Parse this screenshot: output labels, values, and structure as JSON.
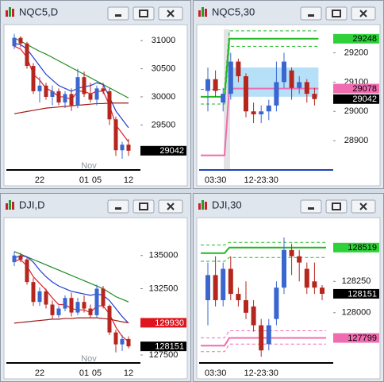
{
  "windows": [
    {
      "title": "NQC5,D",
      "chart": {
        "type": "candlestick",
        "ylim": [
          28700,
          31200
        ],
        "yticks": [
          29500,
          30000,
          30500,
          31000
        ],
        "categories": [
          null,
          null,
          null,
          null,
          "22",
          null,
          null,
          null,
          null,
          null,
          null,
          "01",
          null,
          "05",
          null,
          null,
          null,
          null,
          "12"
        ],
        "month_label": "Nov",
        "up_color": "#3a66d0",
        "down_color": "#b5261e",
        "candles": [
          {
            "o": 30900,
            "h": 31120,
            "l": 30850,
            "c": 31050
          },
          {
            "o": 31050,
            "h": 31080,
            "l": 30880,
            "c": 30950
          },
          {
            "o": 30950,
            "h": 30980,
            "l": 30500,
            "c": 30550
          },
          {
            "o": 30550,
            "h": 30600,
            "l": 30050,
            "c": 30100
          },
          {
            "o": 30100,
            "h": 30350,
            "l": 29900,
            "c": 30200
          },
          {
            "o": 30200,
            "h": 30250,
            "l": 29950,
            "c": 30000
          },
          {
            "o": 30000,
            "h": 30200,
            "l": 29850,
            "c": 30100
          },
          {
            "o": 30100,
            "h": 30150,
            "l": 29850,
            "c": 29900
          },
          {
            "o": 29900,
            "h": 30100,
            "l": 29800,
            "c": 30050
          },
          {
            "o": 30050,
            "h": 30150,
            "l": 29750,
            "c": 29850
          },
          {
            "o": 29850,
            "h": 30500,
            "l": 29800,
            "c": 30350
          },
          {
            "o": 30350,
            "h": 30450,
            "l": 30000,
            "c": 30050
          },
          {
            "o": 30050,
            "h": 30250,
            "l": 29900,
            "c": 29950
          },
          {
            "o": 29950,
            "h": 30200,
            "l": 29850,
            "c": 30150
          },
          {
            "o": 30150,
            "h": 30250,
            "l": 30050,
            "c": 30100
          },
          {
            "o": 30100,
            "h": 30150,
            "l": 29500,
            "c": 29600
          },
          {
            "o": 29600,
            "h": 29650,
            "l": 28950,
            "c": 29050
          },
          {
            "o": 29050,
            "h": 29200,
            "l": 28900,
            "c": 29150
          },
          {
            "o": 29150,
            "h": 29250,
            "l": 28950,
            "c": 29042
          }
        ],
        "lines": [
          {
            "color": "#1e8a1e",
            "values": [
              31050,
              30990,
              30930,
              30870,
              30810,
              30760,
              30700,
              30640,
              30580,
              30520,
              30460,
              30400,
              30340,
              30280,
              30220,
              30160,
              30100,
              30040,
              29980
            ]
          },
          {
            "color": "#1f3fd0",
            "values": [
              30950,
              30930,
              30850,
              30700,
              30550,
              30400,
              30300,
              30200,
              30150,
              30100,
              30150,
              30180,
              30200,
              30250,
              30220,
              30000,
              29750,
              29600,
              29450
            ]
          },
          {
            "color": "#e0202a",
            "values": [
              30900,
              30850,
              30700,
              30400,
              30300,
              30150,
              30100,
              30000,
              30000,
              29950,
              30100,
              30100,
              30050,
              30100,
              30100,
              29850,
              29500,
              29350,
              29200
            ]
          },
          {
            "color": "#a01818",
            "values": [
              29700,
              29720,
              29740,
              29760,
              29780,
              29800,
              29810,
              29820,
              29830,
              29840,
              29850,
              29860,
              29870,
              29880,
              29880,
              29890,
              29890,
              29890,
              29890
            ]
          }
        ],
        "price_tags": [
          {
            "value": 29042,
            "color": "#000000",
            "text_color": "#ffffff"
          }
        ]
      }
    },
    {
      "title": "NQC5,30",
      "chart": {
        "type": "candlestick",
        "ylim": [
          28800,
          29280
        ],
        "yticks": [
          28900,
          29000,
          29100,
          29200
        ],
        "categories": [
          null,
          "03:30",
          null,
          null,
          null,
          null,
          null,
          "12-23:30",
          null,
          null,
          null,
          null,
          null,
          null,
          null
        ],
        "up_color": "#3a66d0",
        "down_color": "#b5261e",
        "session_break": 3,
        "zone": {
          "values": [
            29050,
            29150
          ],
          "color": "#a9dbf7"
        },
        "candles": [
          {
            "o": 29070,
            "h": 29150,
            "l": 29000,
            "c": 29110
          },
          {
            "o": 29110,
            "h": 29140,
            "l": 29050,
            "c": 29070
          },
          {
            "o": 29030,
            "h": 29080,
            "l": 29000,
            "c": 29060
          },
          {
            "o": 29060,
            "h": 29200,
            "l": 29040,
            "c": 29170
          },
          {
            "o": 29170,
            "h": 29180,
            "l": 29100,
            "c": 29120
          },
          {
            "o": 29120,
            "h": 29130,
            "l": 28980,
            "c": 29000
          },
          {
            "o": 29000,
            "h": 29030,
            "l": 28960,
            "c": 28990
          },
          {
            "o": 28990,
            "h": 29020,
            "l": 28960,
            "c": 29000
          },
          {
            "o": 29000,
            "h": 29040,
            "l": 28970,
            "c": 29020
          },
          {
            "o": 29020,
            "h": 29170,
            "l": 29000,
            "c": 29100
          },
          {
            "o": 29100,
            "h": 29200,
            "l": 29080,
            "c": 29170
          },
          {
            "o": 29140,
            "h": 29150,
            "l": 29040,
            "c": 29080
          },
          {
            "o": 29080,
            "h": 29120,
            "l": 29060,
            "c": 29100
          },
          {
            "o": 29100,
            "h": 29110,
            "l": 29030,
            "c": 29060
          },
          {
            "o": 29060,
            "h": 29080,
            "l": 29020,
            "c": 29042
          }
        ],
        "levels": [
          {
            "color": "#22b922",
            "dashed": false,
            "values": [
              29050,
              29248
            ]
          },
          {
            "color": "#22b922",
            "dashed": true,
            "values": [
              29075,
              29275
            ]
          },
          {
            "color": "#22b922",
            "dashed": true,
            "values": [
              29025,
              29222
            ]
          },
          {
            "color": "#f06cb0",
            "dashed": false,
            "values": [
              28850,
              29078
            ]
          }
        ],
        "price_tags": [
          {
            "value": 29248,
            "color": "#2ed13a",
            "text_color": "#000000"
          },
          {
            "value": 29078,
            "color": "#f06cb0",
            "text_color": "#000000"
          },
          {
            "value": 29042,
            "color": "#000000",
            "text_color": "#ffffff"
          }
        ]
      }
    },
    {
      "title": "DJI,D",
      "chart": {
        "type": "candlestick",
        "ylim": [
          126900,
          137500
        ],
        "yticks": [
          127500,
          132500,
          135000
        ],
        "categories": [
          null,
          null,
          null,
          null,
          "22",
          null,
          null,
          null,
          null,
          null,
          null,
          "01",
          null,
          "05",
          null,
          null,
          null,
          null,
          "12"
        ],
        "month_label": "Nov",
        "up_color": "#3a66d0",
        "down_color": "#b5261e",
        "candles": [
          {
            "o": 134500,
            "h": 135300,
            "l": 134200,
            "c": 135000
          },
          {
            "o": 135000,
            "h": 135200,
            "l": 134500,
            "c": 134700
          },
          {
            "o": 134700,
            "h": 134900,
            "l": 132800,
            "c": 133000
          },
          {
            "o": 133000,
            "h": 133300,
            "l": 131200,
            "c": 131500
          },
          {
            "o": 131500,
            "h": 132600,
            "l": 131200,
            "c": 132300
          },
          {
            "o": 132300,
            "h": 132500,
            "l": 131000,
            "c": 131300
          },
          {
            "o": 131300,
            "h": 131600,
            "l": 130200,
            "c": 130500
          },
          {
            "o": 130500,
            "h": 131200,
            "l": 130300,
            "c": 131000
          },
          {
            "o": 131000,
            "h": 132000,
            "l": 130800,
            "c": 131800
          },
          {
            "o": 131800,
            "h": 132200,
            "l": 130400,
            "c": 130700
          },
          {
            "o": 130700,
            "h": 131800,
            "l": 130500,
            "c": 131500
          },
          {
            "o": 131500,
            "h": 132000,
            "l": 130700,
            "c": 131000
          },
          {
            "o": 131000,
            "h": 131300,
            "l": 130300,
            "c": 130500
          },
          {
            "o": 130500,
            "h": 132800,
            "l": 130300,
            "c": 132500
          },
          {
            "o": 132500,
            "h": 132700,
            "l": 131000,
            "c": 131200
          },
          {
            "o": 131200,
            "h": 131300,
            "l": 129000,
            "c": 129200
          },
          {
            "o": 129200,
            "h": 129400,
            "l": 127700,
            "c": 128300
          },
          {
            "o": 128300,
            "h": 129000,
            "l": 127800,
            "c": 128700
          },
          {
            "o": 128700,
            "h": 128900,
            "l": 128000,
            "c": 128151
          }
        ],
        "lines": [
          {
            "color": "#1e8a1e",
            "values": [
              135300,
              135100,
              134900,
              134700,
              134500,
              134300,
              134100,
              133900,
              133700,
              133500,
              133300,
              133100,
              132900,
              132700,
              132500,
              132200,
              131900,
              131700,
              131500
            ]
          },
          {
            "color": "#1f3fd0",
            "values": [
              134800,
              135000,
              134900,
              134500,
              133900,
              133400,
              133000,
              132700,
              132500,
              132300,
              132200,
              132100,
              132000,
              132100,
              132000,
              131600,
              131000,
              130400,
              129900
            ]
          },
          {
            "color": "#e0202a",
            "values": [
              134600,
              134700,
              134200,
              133400,
              132900,
              132400,
              131800,
              131300,
              131300,
              131000,
              130900,
              130900,
              130700,
              131200,
              131200,
              130600,
              129600,
              128900,
              128500
            ]
          },
          {
            "color": "#a01818",
            "values": [
              129900,
              129950,
              130000,
              130050,
              130100,
              130150,
              130200,
              130200,
              130250,
              130250,
              130300,
              130300,
              130300,
              130300,
              130250,
              130200,
              130100,
              130000,
              129930
            ]
          }
        ],
        "price_tags": [
          {
            "value": 129930,
            "color": "#e0141e",
            "text_color": "#ffffff"
          },
          {
            "value": 128151,
            "color": "#000000",
            "text_color": "#ffffff"
          }
        ]
      }
    },
    {
      "title": "DJI,30",
      "chart": {
        "type": "candlestick",
        "ylim": [
          127600,
          128720
        ],
        "yticks": [
          128000,
          128250
        ],
        "categories": [
          null,
          "03:30",
          null,
          null,
          null,
          null,
          null,
          "12-23:30",
          null,
          null,
          null,
          null,
          null,
          null,
          null,
          null
        ],
        "up_color": "#3a66d0",
        "down_color": "#b5261e",
        "session_break": 3,
        "candles": [
          {
            "o": 128100,
            "h": 128400,
            "l": 127900,
            "c": 128300
          },
          {
            "o": 128300,
            "h": 128450,
            "l": 128050,
            "c": 128100
          },
          {
            "o": 128100,
            "h": 128400,
            "l": 128050,
            "c": 128350
          },
          {
            "o": 128350,
            "h": 128450,
            "l": 128100,
            "c": 128150
          },
          {
            "o": 128150,
            "h": 128200,
            "l": 128050,
            "c": 128100
          },
          {
            "o": 128100,
            "h": 128250,
            "l": 127950,
            "c": 128000
          },
          {
            "o": 128050,
            "h": 128100,
            "l": 127850,
            "c": 127900
          },
          {
            "o": 127900,
            "h": 127950,
            "l": 127650,
            "c": 127700
          },
          {
            "o": 127750,
            "h": 127950,
            "l": 127700,
            "c": 127900
          },
          {
            "o": 127950,
            "h": 128250,
            "l": 127900,
            "c": 128200
          },
          {
            "o": 128200,
            "h": 128600,
            "l": 128150,
            "c": 128500
          },
          {
            "o": 128500,
            "h": 128550,
            "l": 128300,
            "c": 128450
          },
          {
            "o": 128450,
            "h": 128500,
            "l": 128250,
            "c": 128400
          },
          {
            "o": 128350,
            "h": 128400,
            "l": 128150,
            "c": 128200
          },
          {
            "o": 128250,
            "h": 128400,
            "l": 128150,
            "c": 128200
          },
          {
            "o": 128200,
            "h": 128220,
            "l": 128100,
            "c": 128151
          }
        ],
        "levels": [
          {
            "color": "#22b922",
            "dashed": false,
            "values": [
              128475,
              128519
            ]
          },
          {
            "color": "#22b922",
            "dashed": true,
            "values": [
              128540,
              128560
            ]
          },
          {
            "color": "#22b922",
            "dashed": true,
            "values": [
              128410,
              128440
            ]
          },
          {
            "color": "#f06cb0",
            "dashed": false,
            "values": [
              127738,
              127799
            ]
          },
          {
            "color": "#f06cb0",
            "dashed": true,
            "values": [
              127800,
              127856
            ]
          },
          {
            "color": "#f06cb0",
            "dashed": true,
            "values": [
              127690,
              127750
            ]
          }
        ],
        "price_tags": [
          {
            "value": 128519,
            "color": "#2ed13a",
            "text_color": "#000000"
          },
          {
            "value": 128151,
            "color": "#000000",
            "text_color": "#ffffff"
          },
          {
            "value": 127799,
            "color": "#f06cb0",
            "text_color": "#000000"
          }
        ]
      }
    }
  ]
}
